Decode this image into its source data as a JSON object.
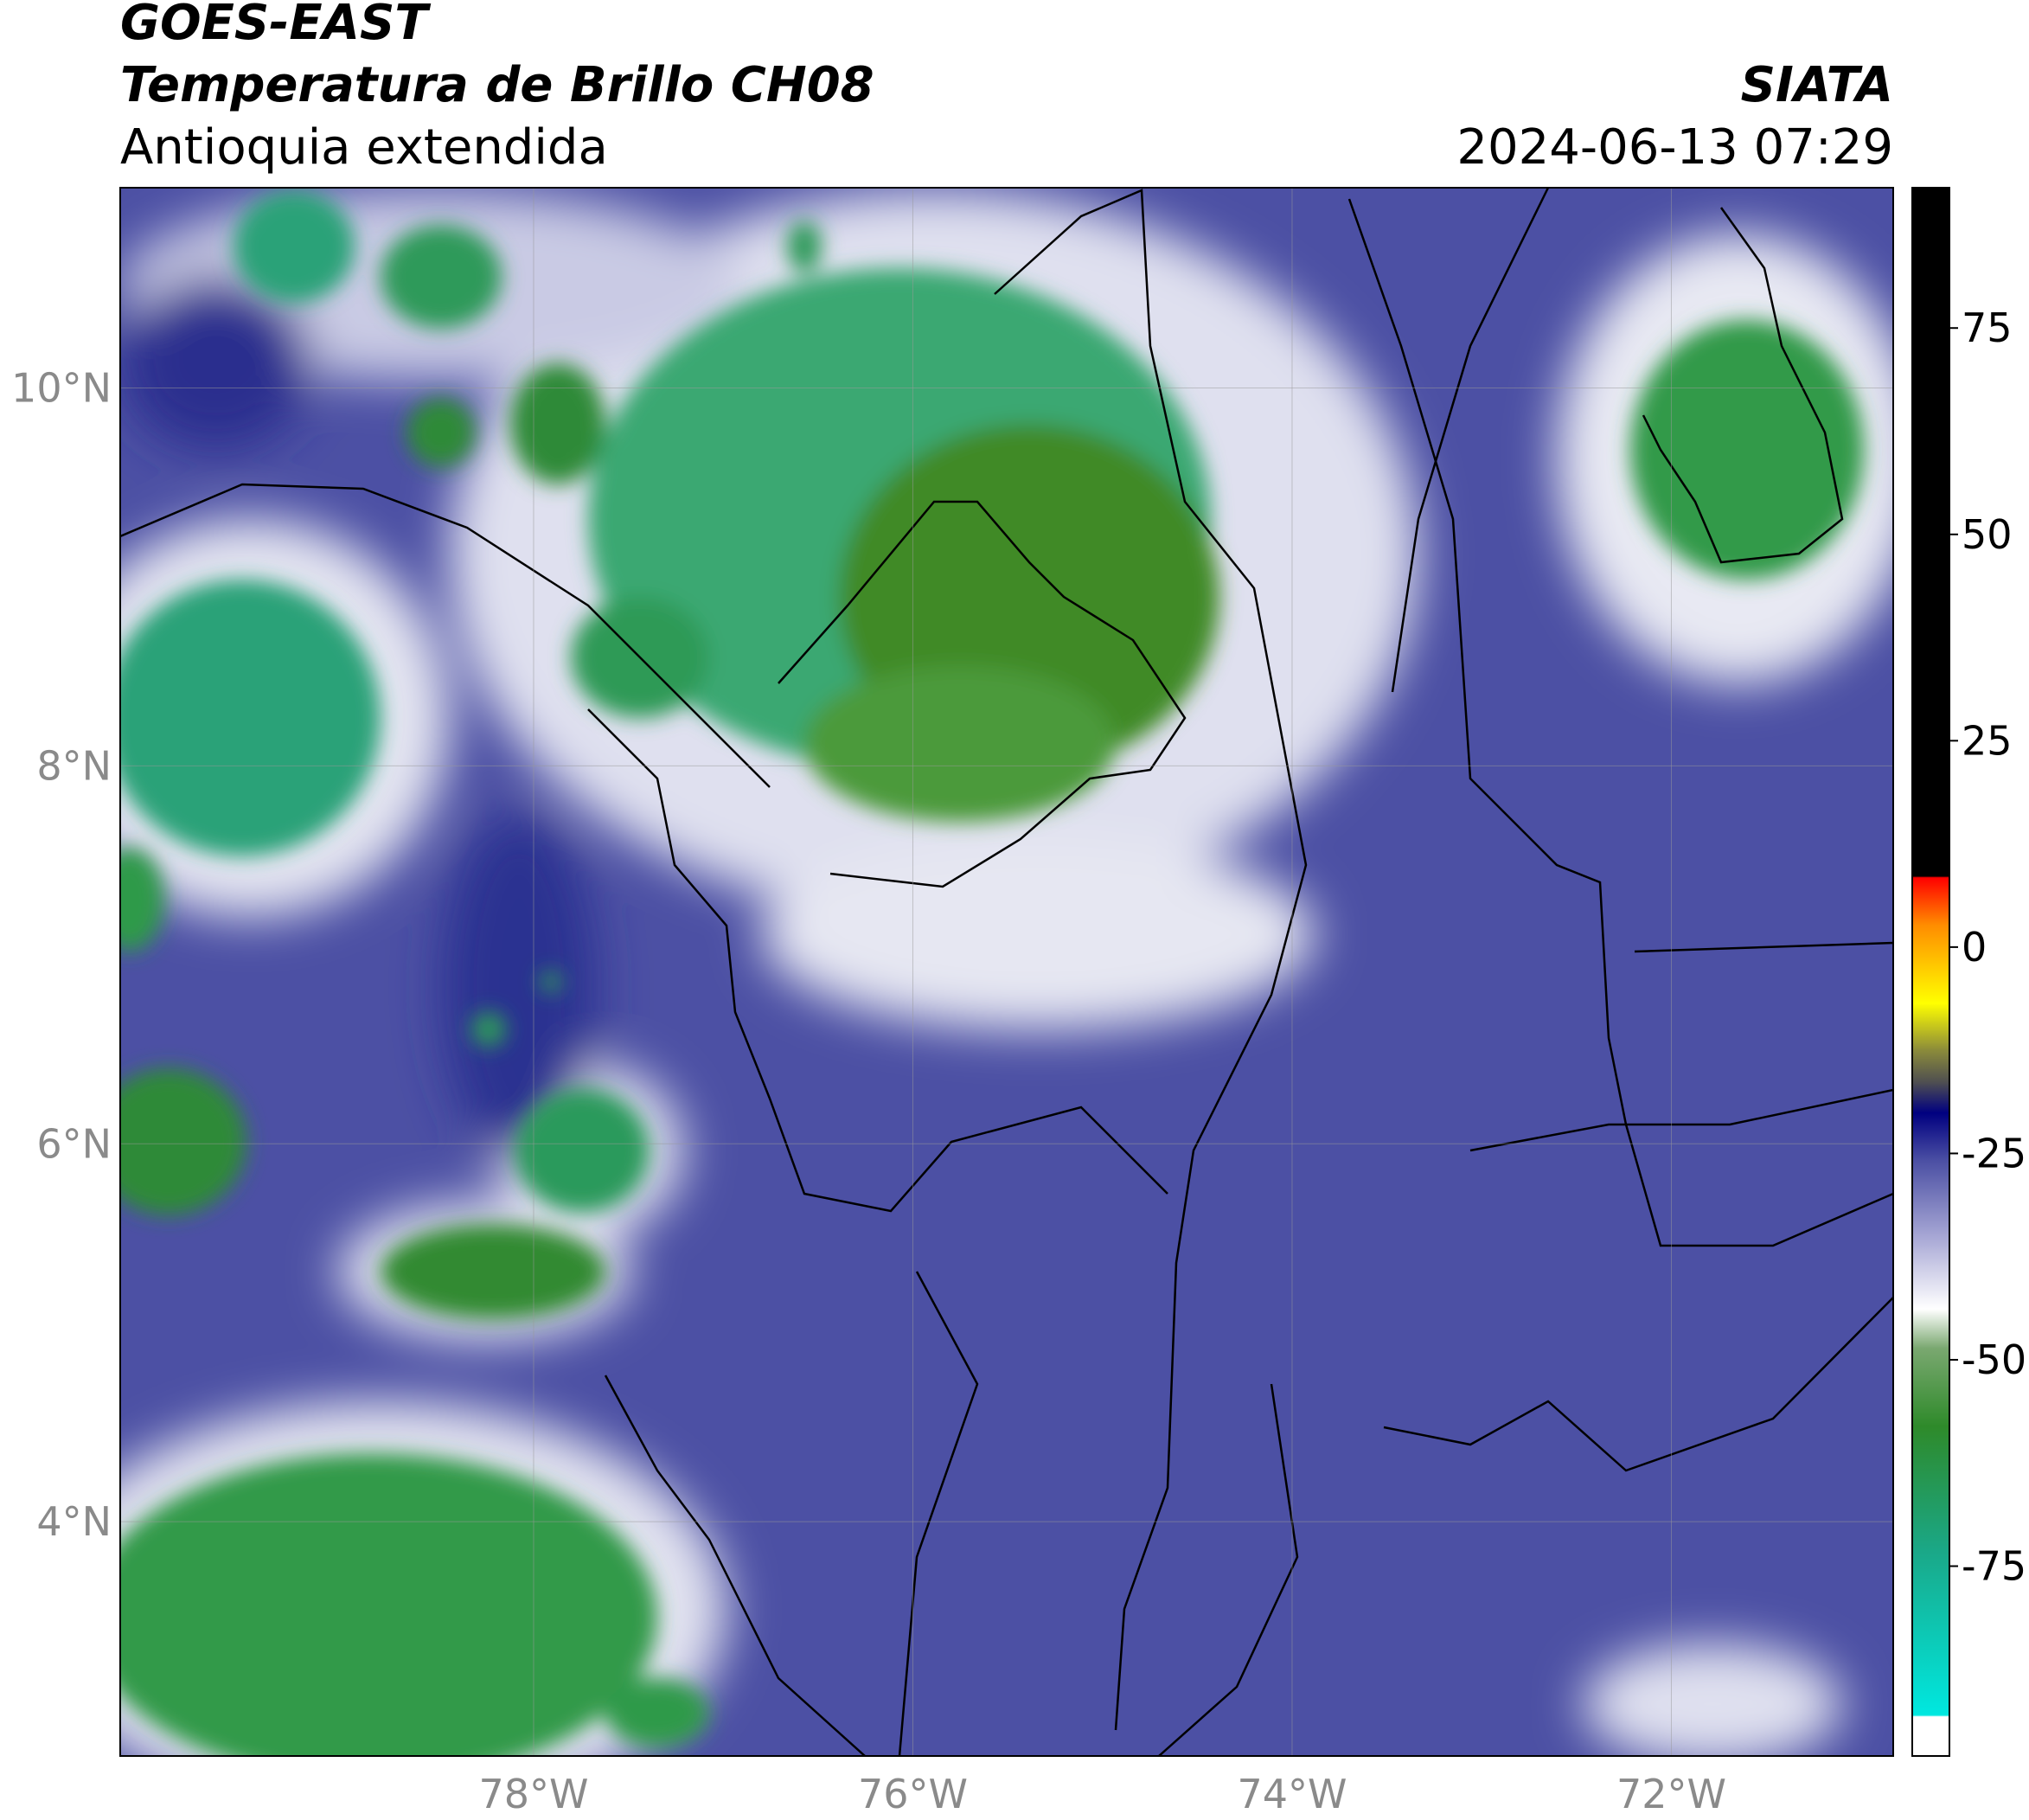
{
  "header": {
    "source": "GOES-EAST",
    "title": "Temperatura de Brillo CH08",
    "subtitle": "Antioquia extendida",
    "organization": "SIATA",
    "datetime": "2024-06-13 07:29"
  },
  "chart_data": {
    "type": "map",
    "xlim": [
      -80.18,
      -70.83
    ],
    "ylim": [
      2.76,
      11.06
    ],
    "xticks": [
      {
        "value": -78,
        "label": "78°W"
      },
      {
        "value": -76,
        "label": "76°W"
      },
      {
        "value": -74,
        "label": "74°W"
      },
      {
        "value": -72,
        "label": "72°W"
      }
    ],
    "yticks": [
      {
        "value": 4,
        "label": "4°N"
      },
      {
        "value": 6,
        "label": "6°N"
      },
      {
        "value": 8,
        "label": "8°N"
      },
      {
        "value": 10,
        "label": "10°N"
      }
    ],
    "grid": true,
    "colorbar": {
      "lim": [
        -98,
        92
      ],
      "ticks": [
        -75,
        -50,
        -25,
        0,
        25,
        50,
        75
      ]
    }
  }
}
